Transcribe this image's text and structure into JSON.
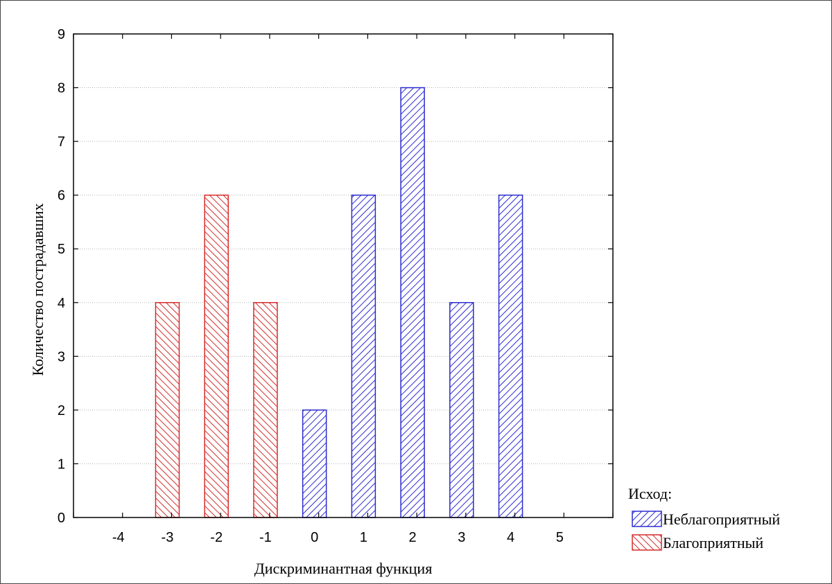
{
  "chart_data": {
    "type": "bar",
    "xlabel": "Дискриминантная функция",
    "ylabel": "Количество пострадавших",
    "xlim": [
      -5,
      6
    ],
    "ylim": [
      0,
      9
    ],
    "x_ticks": [
      -4,
      -3,
      -2,
      -1,
      0,
      1,
      2,
      3,
      4,
      5
    ],
    "y_ticks": [
      0,
      1,
      2,
      3,
      4,
      5,
      6,
      7,
      8,
      9
    ],
    "grid": "horizontal dotted",
    "legend": {
      "title": "Исход:",
      "position": "bottom-right outside plot"
    },
    "series": [
      {
        "name": "Неблагоприятный",
        "color": "#2b2bd1",
        "pattern": "diagonal hatch /",
        "x": [
          0,
          1,
          2,
          3,
          4
        ],
        "values": [
          2,
          6,
          8,
          4,
          6
        ]
      },
      {
        "name": "Благоприятный",
        "color": "#d62b2b",
        "pattern": "diagonal hatch \\",
        "x": [
          -3,
          -2,
          -1
        ],
        "values": [
          4,
          6,
          4
        ]
      }
    ]
  }
}
